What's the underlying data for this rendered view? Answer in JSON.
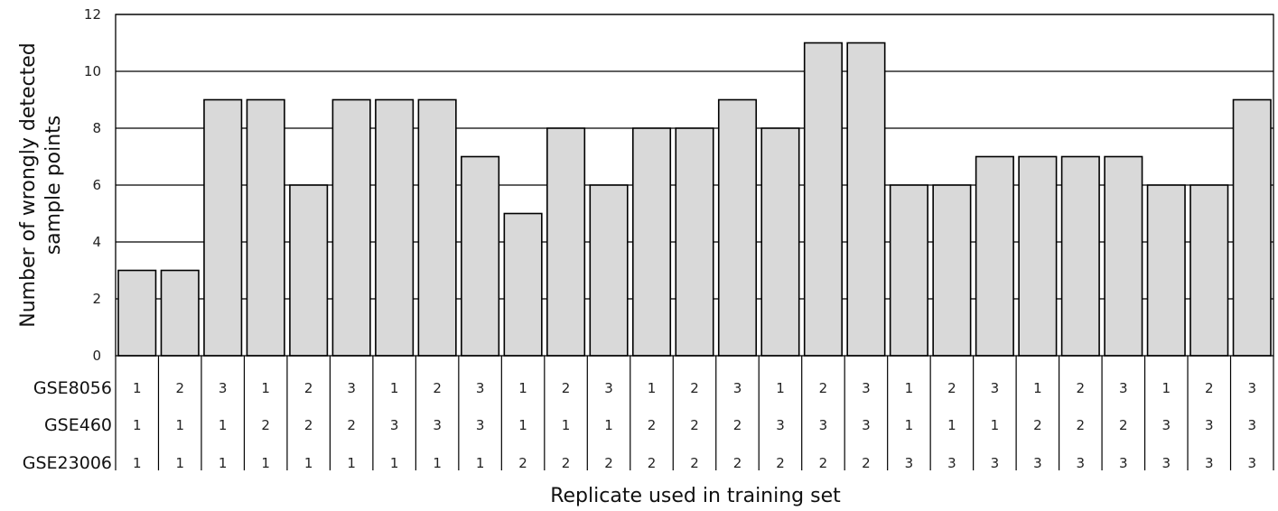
{
  "chart_data": {
    "type": "bar",
    "title": "",
    "ylabel_lines": [
      "Number of wrongly detected",
      "sample points"
    ],
    "xlabel": "Replicate used in training set",
    "ylim": [
      0,
      12
    ],
    "yticks": [
      0,
      2,
      4,
      6,
      8,
      10,
      12
    ],
    "grid": true,
    "bar_color": "#d9d9d9",
    "values": [
      3,
      3,
      9,
      9,
      6,
      9,
      9,
      9,
      7,
      5,
      8,
      6,
      8,
      8,
      9,
      8,
      11,
      11,
      6,
      6,
      7,
      7,
      7,
      7,
      6,
      6,
      9
    ],
    "table_rows": [
      {
        "name": "GSE8056",
        "values": [
          1,
          2,
          3,
          1,
          2,
          3,
          1,
          2,
          3,
          1,
          2,
          3,
          1,
          2,
          3,
          1,
          2,
          3,
          1,
          2,
          3,
          1,
          2,
          3,
          1,
          2,
          3
        ]
      },
      {
        "name": "GSE460",
        "values": [
          1,
          1,
          1,
          2,
          2,
          2,
          3,
          3,
          3,
          1,
          1,
          1,
          2,
          2,
          2,
          3,
          3,
          3,
          1,
          1,
          1,
          2,
          2,
          2,
          3,
          3,
          3
        ]
      },
      {
        "name": "GSE23006",
        "values": [
          1,
          1,
          1,
          1,
          1,
          1,
          1,
          1,
          1,
          2,
          2,
          2,
          2,
          2,
          2,
          2,
          2,
          2,
          3,
          3,
          3,
          3,
          3,
          3,
          3,
          3,
          3
        ]
      }
    ]
  }
}
